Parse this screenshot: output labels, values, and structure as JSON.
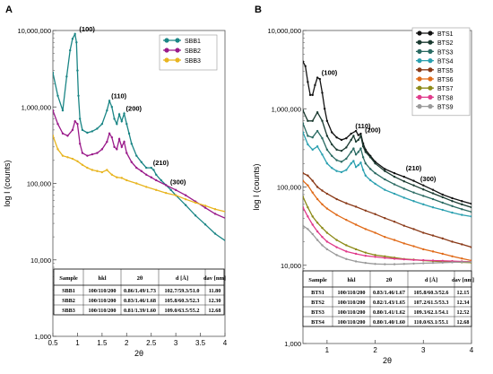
{
  "chart_data": [
    {
      "panel_label": "A",
      "type": "line",
      "xlabel": "2θ",
      "ylabel": "log I (counts)",
      "xlim": [
        0.5,
        4
      ],
      "x_ticks": [
        0.5,
        1,
        1.5,
        2,
        2.5,
        3,
        3.5,
        4
      ],
      "x_tick_labels": [
        "0.5",
        "1",
        "1.5",
        "2",
        "2.5",
        "3",
        "3.5",
        "4"
      ],
      "y_scale": "log",
      "ylim": [
        1000,
        10000000
      ],
      "y_ticks": [
        1000,
        10000,
        100000,
        1000000,
        10000000
      ],
      "y_tick_labels": [
        "1,000",
        "10,000",
        "100,000",
        "1,000,000",
        "10,000,000"
      ],
      "legend_position": "top-right",
      "series": [
        {
          "name": "SBB1",
          "color": "#1a8585",
          "x": [
            0.5,
            0.6,
            0.7,
            0.78,
            0.85,
            0.9,
            0.95,
            0.98,
            1.0,
            1.02,
            1.05,
            1.1,
            1.2,
            1.3,
            1.4,
            1.5,
            1.6,
            1.65,
            1.7,
            1.75,
            1.8,
            1.85,
            1.9,
            1.95,
            2.0,
            2.05,
            2.1,
            2.2,
            2.3,
            2.4,
            2.5,
            2.55,
            2.6,
            2.7,
            2.8,
            2.9,
            3.0,
            3.2,
            3.4,
            3.6,
            3.8,
            4.05
          ],
          "y": [
            2800000,
            1400000,
            900000,
            2500000,
            5500000,
            7800000,
            9000000,
            7000000,
            3000000,
            1400000,
            700000,
            500000,
            460000,
            480000,
            520000,
            600000,
            900000,
            1200000,
            1000000,
            700000,
            600000,
            800000,
            650000,
            820000,
            600000,
            450000,
            330000,
            230000,
            190000,
            160000,
            160000,
            150000,
            130000,
            110000,
            95000,
            82000,
            70000,
            52000,
            38000,
            29000,
            22000,
            17000
          ]
        },
        {
          "name": "SBB2",
          "color": "#9a1a8a",
          "x": [
            0.5,
            0.6,
            0.7,
            0.8,
            0.9,
            0.95,
            1.0,
            1.05,
            1.1,
            1.2,
            1.3,
            1.4,
            1.5,
            1.6,
            1.65,
            1.7,
            1.75,
            1.8,
            1.85,
            1.9,
            1.95,
            2.0,
            2.1,
            2.2,
            2.3,
            2.4,
            2.5,
            2.6,
            2.8,
            3.0,
            3.2,
            3.4,
            3.6,
            3.8,
            4.05
          ],
          "y": [
            900000,
            600000,
            450000,
            420000,
            500000,
            650000,
            600000,
            330000,
            250000,
            230000,
            240000,
            250000,
            280000,
            350000,
            450000,
            400000,
            300000,
            280000,
            380000,
            300000,
            350000,
            250000,
            190000,
            160000,
            145000,
            130000,
            120000,
            110000,
            95000,
            82000,
            70000,
            58000,
            48000,
            40000,
            34000
          ]
        },
        {
          "name": "SBB3",
          "color": "#e8b520",
          "x": [
            0.5,
            0.6,
            0.7,
            0.8,
            0.9,
            1.0,
            1.1,
            1.2,
            1.3,
            1.4,
            1.5,
            1.6,
            1.7,
            1.8,
            1.9,
            2.0,
            2.2,
            2.4,
            2.6,
            2.8,
            3.0,
            3.2,
            3.4,
            3.6,
            3.8,
            4.05
          ],
          "y": [
            420000,
            280000,
            230000,
            220000,
            210000,
            195000,
            175000,
            160000,
            150000,
            145000,
            140000,
            150000,
            130000,
            120000,
            118000,
            110000,
            100000,
            90000,
            82000,
            75000,
            70000,
            62000,
            56000,
            51000,
            46000,
            42000
          ]
        }
      ],
      "annotations": [
        {
          "text": "(100)",
          "x": 1.0,
          "y": 9000000
        },
        {
          "text": "(110)",
          "x": 1.65,
          "y": 1200000
        },
        {
          "text": "(200)",
          "x": 1.95,
          "y": 820000
        },
        {
          "text": "(210)",
          "x": 2.5,
          "y": 160000
        },
        {
          "text": "(300)",
          "x": 2.85,
          "y": 90000
        }
      ],
      "table": {
        "headers": [
          "Sample",
          "hkl",
          "2θ",
          "d [Å]",
          "dav [nm]"
        ],
        "rows": [
          [
            "SBB1",
            "100/110/200",
            "0.86/1.49/1.73",
            "102.7/59.3/51.0",
            "11.80"
          ],
          [
            "SBB2",
            "100/110/200",
            "0.83/1.46/1.68",
            "105.8/60.3/52.3",
            "12.30"
          ],
          [
            "SBB3",
            "100/110/200",
            "0.81/1.39/1.60",
            "109.0/63.5/55.2",
            "12.68"
          ]
        ]
      }
    },
    {
      "panel_label": "B",
      "type": "line",
      "xlabel": "2θ",
      "ylabel": "log I (counts)",
      "xlim": [
        0.5,
        4
      ],
      "x_ticks": [
        1,
        2,
        3,
        4
      ],
      "x_tick_labels": [
        "1",
        "2",
        "3",
        "4"
      ],
      "y_scale": "log",
      "ylim": [
        1000,
        10000000
      ],
      "y_ticks": [
        1000,
        10000,
        100000,
        1000000,
        10000000
      ],
      "y_tick_labels": [
        "1,000",
        "10,000",
        "100,000",
        "1,000,000",
        "10,000,000"
      ],
      "legend_position": "top-right",
      "series": [
        {
          "name": "BTS1",
          "color": "#111111",
          "x": [
            0.5,
            0.55,
            0.6,
            0.65,
            0.7,
            0.75,
            0.8,
            0.85,
            0.9,
            0.95,
            1.0,
            1.1,
            1.2,
            1.3,
            1.4,
            1.5,
            1.6,
            1.65,
            1.7,
            1.75,
            1.8,
            1.9,
            2.0,
            2.2,
            2.4,
            2.6,
            2.8,
            3.0,
            3.2,
            3.4,
            3.6,
            3.8,
            4.0
          ],
          "y": [
            4000000,
            3500000,
            2200000,
            1500000,
            1500000,
            2000000,
            2500000,
            2400000,
            1600000,
            1000000,
            700000,
            500000,
            430000,
            400000,
            420000,
            480000,
            520000,
            460000,
            480000,
            360000,
            300000,
            250000,
            210000,
            170000,
            150000,
            135000,
            120000,
            105000,
            92000,
            80000,
            72000,
            66000,
            61000
          ]
        },
        {
          "name": "BTS2",
          "color": "#1a3a30",
          "x": [
            0.5,
            0.6,
            0.7,
            0.8,
            0.9,
            1.0,
            1.1,
            1.2,
            1.3,
            1.4,
            1.5,
            1.55,
            1.6,
            1.65,
            1.7,
            1.75,
            1.8,
            1.9,
            2.0,
            2.2,
            2.4,
            2.6,
            2.8,
            3.0,
            3.2,
            3.4,
            3.6,
            3.8,
            4.0
          ],
          "y": [
            950000,
            700000,
            700000,
            900000,
            700000,
            450000,
            350000,
            300000,
            290000,
            320000,
            400000,
            450000,
            380000,
            400000,
            450000,
            330000,
            280000,
            240000,
            200000,
            160000,
            135000,
            118000,
            105000,
            93000,
            83000,
            74000,
            66000,
            60000,
            55000
          ]
        },
        {
          "name": "BTS3",
          "color": "#2a6a62",
          "x": [
            0.5,
            0.6,
            0.7,
            0.8,
            0.9,
            1.0,
            1.1,
            1.2,
            1.3,
            1.4,
            1.5,
            1.55,
            1.6,
            1.65,
            1.7,
            1.75,
            1.8,
            1.9,
            2.0,
            2.2,
            2.4,
            2.6,
            2.8,
            3.0,
            3.2,
            3.4,
            3.6,
            3.8,
            4.0
          ],
          "y": [
            650000,
            450000,
            430000,
            520000,
            420000,
            300000,
            250000,
            220000,
            210000,
            230000,
            280000,
            310000,
            260000,
            280000,
            310000,
            240000,
            200000,
            170000,
            150000,
            125000,
            108000,
            95000,
            85000,
            77000,
            70000,
            63000,
            57000,
            52000,
            48000
          ]
        },
        {
          "name": "BTS4",
          "color": "#2aa0b0",
          "x": [
            0.5,
            0.6,
            0.7,
            0.8,
            0.9,
            1.0,
            1.1,
            1.2,
            1.3,
            1.4,
            1.5,
            1.55,
            1.6,
            1.65,
            1.7,
            1.75,
            1.8,
            1.9,
            2.0,
            2.2,
            2.4,
            2.6,
            2.8,
            3.0,
            3.2,
            3.4,
            3.6,
            3.8,
            4.0
          ],
          "y": [
            500000,
            350000,
            300000,
            330000,
            260000,
            200000,
            175000,
            160000,
            155000,
            165000,
            200000,
            215000,
            180000,
            190000,
            205000,
            165000,
            140000,
            122000,
            110000,
            92000,
            82000,
            73000,
            66000,
            60000,
            55000,
            51000,
            47000,
            44000,
            42000
          ]
        },
        {
          "name": "BTS5",
          "color": "#8a3a18",
          "x": [
            0.5,
            0.6,
            0.7,
            0.8,
            0.9,
            1.0,
            1.2,
            1.4,
            1.6,
            1.8,
            2.0,
            2.2,
            2.4,
            2.6,
            2.8,
            3.0,
            3.2,
            3.4,
            3.6,
            3.8,
            4.0
          ],
          "y": [
            150000,
            140000,
            120000,
            100000,
            90000,
            82000,
            70000,
            62000,
            56000,
            50000,
            45000,
            40000,
            36000,
            32000,
            29000,
            26000,
            24000,
            22000,
            20000,
            18500,
            17000
          ]
        },
        {
          "name": "BTS6",
          "color": "#e06a18",
          "x": [
            0.5,
            0.6,
            0.7,
            0.8,
            0.9,
            1.0,
            1.2,
            1.4,
            1.6,
            1.8,
            2.0,
            2.2,
            2.4,
            2.6,
            2.8,
            3.0,
            3.2,
            3.4,
            3.6,
            3.8,
            4.0
          ],
          "y": [
            120000,
            105000,
            85000,
            70000,
            60000,
            53000,
            44000,
            38000,
            33000,
            29000,
            26000,
            23000,
            21000,
            19000,
            17500,
            16000,
            15000,
            14000,
            13000,
            12200,
            11500
          ]
        },
        {
          "name": "BTS7",
          "color": "#8c8a18",
          "x": [
            0.5,
            0.6,
            0.7,
            0.8,
            0.9,
            1.0,
            1.2,
            1.4,
            1.6,
            1.8,
            2.0,
            2.2,
            2.4,
            2.6,
            2.8,
            3.0,
            3.2,
            3.4,
            3.6,
            3.8,
            4.0
          ],
          "y": [
            75000,
            55000,
            42000,
            35000,
            30000,
            26000,
            21000,
            18000,
            16000,
            14500,
            13500,
            13000,
            12500,
            12000,
            11800,
            11500,
            11300,
            11100,
            11000,
            10900,
            10800
          ]
        },
        {
          "name": "BTS8",
          "color": "#e03a8a",
          "x": [
            0.5,
            0.6,
            0.7,
            0.8,
            0.9,
            1.0,
            1.2,
            1.4,
            1.6,
            1.8,
            2.0,
            2.2,
            2.4,
            2.6,
            2.8,
            3.0,
            3.2,
            3.4,
            3.6,
            3.8,
            4.0
          ],
          "y": [
            55000,
            42000,
            33000,
            27000,
            23000,
            20000,
            17000,
            15000,
            14000,
            13200,
            12800,
            12400,
            12100,
            11900,
            11700,
            11600,
            11500,
            11400,
            11300,
            11200,
            11100
          ]
        },
        {
          "name": "BTS9",
          "color": "#9a9a9a",
          "x": [
            0.5,
            0.6,
            0.7,
            0.8,
            0.9,
            1.0,
            1.2,
            1.4,
            1.6,
            1.8,
            2.0,
            2.2,
            2.4,
            2.6,
            2.8,
            3.0,
            3.2,
            3.4,
            3.6,
            3.8,
            4.0
          ],
          "y": [
            32000,
            29000,
            25000,
            21000,
            18000,
            16000,
            13500,
            12000,
            11200,
            10700,
            10400,
            10300,
            10300,
            10400,
            10500,
            10600,
            10700,
            10800,
            10900,
            11000,
            11000
          ]
        }
      ],
      "annotations": [
        {
          "text": "(100)",
          "x": 0.85,
          "y": 2500000
        },
        {
          "text": "(110)",
          "x": 1.55,
          "y": 520000
        },
        {
          "text": "(200)",
          "x": 1.75,
          "y": 460000
        },
        {
          "text": "(210)",
          "x": 2.6,
          "y": 150000
        },
        {
          "text": "(300)",
          "x": 2.9,
          "y": 110000
        }
      ],
      "table": {
        "headers": [
          "Sample",
          "hkl",
          "2θ",
          "d [Å]",
          "dav [nm]"
        ],
        "rows": [
          [
            "BTS1",
            "100/110/200",
            "0.83/1.46/1.67",
            "105.8/60.3/52.6",
            "12.15"
          ],
          [
            "BTS2",
            "100/110/200",
            "0.82/1.43/1.65",
            "107.2/61.5/53.3",
            "12.34"
          ],
          [
            "BTS3",
            "100/110/200",
            "0.80/1.41/1.62",
            "109.3/62.1/54.1",
            "12.52"
          ],
          [
            "BTS4",
            "100/110/200",
            "0.80/1.40/1.60",
            "110.0/63.1/55.1",
            "12.68"
          ]
        ]
      }
    }
  ]
}
